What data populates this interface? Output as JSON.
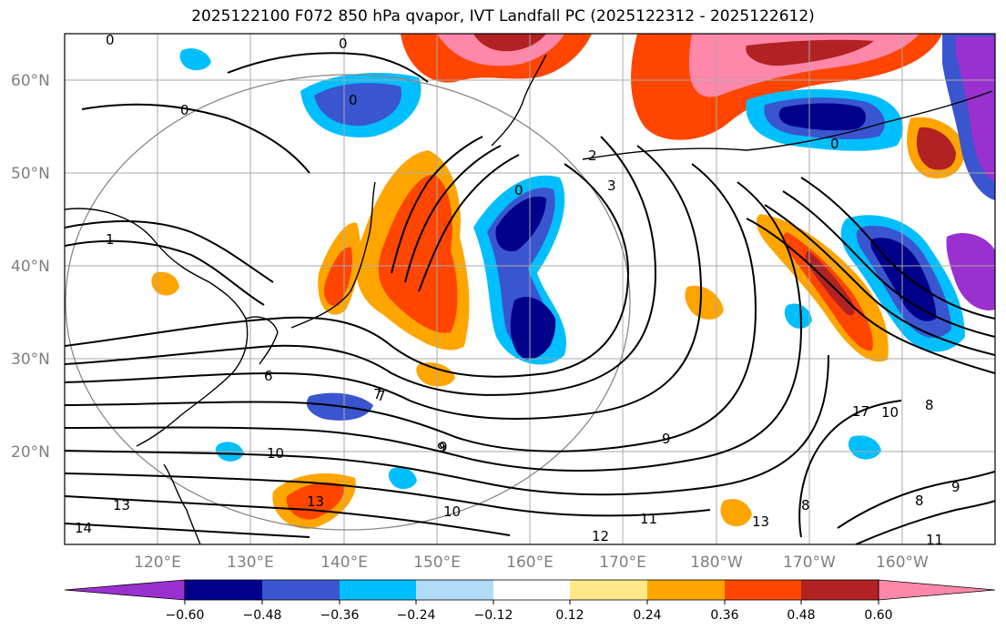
{
  "title": "2025122100 F072 850 hPa qvapor, IVT Landfall PC (2025122312 - 2025122612)",
  "colors": {
    "levels_fill": [
      "#9b30d0",
      "#00008b",
      "#3a55d0",
      "#00bfff",
      "#1e9ff0",
      "#b0dcf8",
      "#ffffff",
      "#ffe88a",
      "#ffa500",
      "#ff4500",
      "#b22222",
      "#ff88aa"
    ],
    "contour": "#000000",
    "grid": "#a9a9a9",
    "coast": "#000000",
    "circle": "#888888"
  },
  "lat_labels": [
    "60°N",
    "50°N",
    "40°N",
    "30°N",
    "20°N"
  ],
  "lon_labels": [
    "120°E",
    "130°E",
    "140°E",
    "150°E",
    "160°E",
    "170°E",
    "180°W",
    "170°W",
    "160°W"
  ],
  "colorbar_ticks": [
    "−0.60",
    "−0.48",
    "−0.36",
    "−0.24",
    "−0.12",
    "0.12",
    "0.24",
    "0.36",
    "0.48",
    "0.60"
  ],
  "contour_labels": [
    "0",
    "0",
    "0",
    "0",
    "0",
    "0",
    "1",
    "2",
    "3",
    "6",
    "7",
    "8",
    "9",
    "9",
    "9",
    "10",
    "10",
    "11",
    "11",
    "12",
    "13",
    "13",
    "13",
    "14",
    "8",
    "9",
    "10",
    "17",
    "7",
    "8"
  ]
}
